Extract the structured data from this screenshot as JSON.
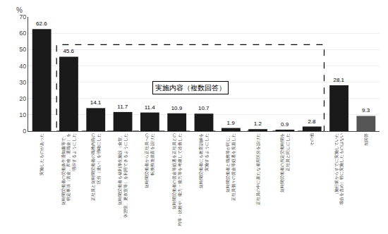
{
  "chart_data": {
    "type": "bar",
    "categories": [
      "実施したものがあった",
      "短時間労働者の労働条件通知書等で、\n特定事項（賃金、昇格、退職金）を\n明示するようにした",
      "正社員と短時間労働者の職務内容の\n区分（違い）を明確にした",
      "短時間労働者も福利厚生施設（食堂、\n休憩室、更衣室等）を利用できるようにした",
      "短時間労働者から正社員への\n転換推進措置を設けた",
      "短時間労働者の賃金等処遇を正社員との\n均等・比較や、能力・能力等を考慮して改善した",
      "短時間労働者にも教育訓練を\n実施するようにした",
      "短時間労働者と職務等が同じ、\n正社員個々の賃金等処遇を見直した",
      "正社員の中に新たな雇用区分を設けた",
      "短時間労働者の所定労働時間を\n正社員と同じにした",
      "その他",
      "（施行前からすでに実施していた\n場合を含め）特に実施したものはない",
      "無回答"
    ],
    "values": [
      62.6,
      45.6,
      14.1,
      11.7,
      11.4,
      10.9,
      10.7,
      1.9,
      1.2,
      0.9,
      2.8,
      28.1,
      9.3
    ],
    "colors": [
      "#1a1a1a",
      "#1a1a1a",
      "#1a1a1a",
      "#1a1a1a",
      "#1a1a1a",
      "#1a1a1a",
      "#1a1a1a",
      "#1a1a1a",
      "#1a1a1a",
      "#1a1a1a",
      "#1a1a1a",
      "#1a1a1a",
      "#555555"
    ],
    "ylabel": "%",
    "ylim": [
      0,
      70
    ],
    "yticks": [
      0,
      10,
      20,
      30,
      40,
      50,
      60,
      70
    ],
    "grid": true,
    "data_labels": true,
    "box": {
      "text": "実施内容（複数回答）",
      "start": 1,
      "end": 10,
      "top": 53
    }
  }
}
